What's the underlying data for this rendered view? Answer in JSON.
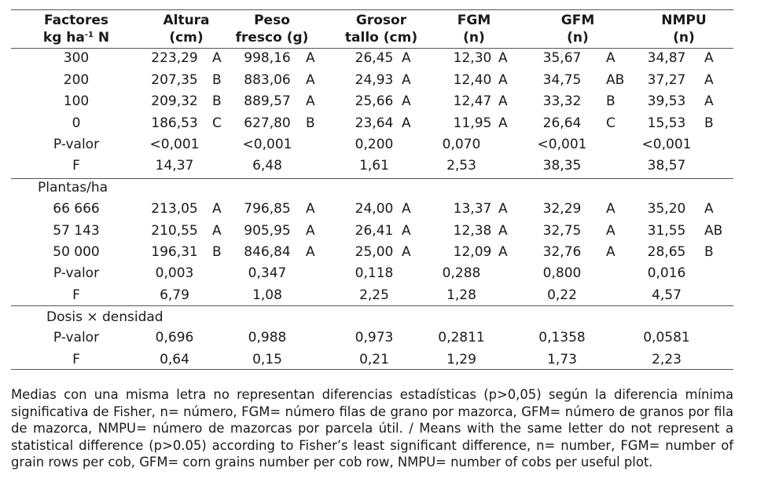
{
  "headers": [
    {
      "line1": "Factores",
      "line2a": "kg ha",
      "sup": "-1",
      "line2b": " N"
    },
    {
      "line1": "Altura",
      "line2": "(cm)"
    },
    {
      "line1": "Peso",
      "line2": "fresco (g)"
    },
    {
      "line1": "Grosor",
      "line2": "tallo (cm)"
    },
    {
      "line1": "FGM",
      "line2": "(n)"
    },
    {
      "line1": "GFM",
      "line2": "(n)"
    },
    {
      "line1": "NMPU",
      "line2": "(n)"
    }
  ],
  "sections": [
    {
      "title": "",
      "rows": [
        {
          "label": "300",
          "cells": [
            [
              "223,29",
              "A"
            ],
            [
              "998,16",
              "A"
            ],
            [
              "26,45",
              "A"
            ],
            [
              "12,30",
              "A"
            ],
            [
              "35,67",
              "A"
            ],
            [
              "34,87",
              "A"
            ]
          ]
        },
        {
          "label": "200",
          "cells": [
            [
              "207,35",
              "B"
            ],
            [
              "883,06",
              "A"
            ],
            [
              "24,93",
              "A"
            ],
            [
              "12,40",
              "A"
            ],
            [
              "34,75",
              "AB"
            ],
            [
              "37,27",
              "A"
            ]
          ]
        },
        {
          "label": "100",
          "cells": [
            [
              "209,32",
              "B"
            ],
            [
              "889,57",
              "A"
            ],
            [
              "25,66",
              "A"
            ],
            [
              "12,47",
              "A"
            ],
            [
              "33,32",
              "B"
            ],
            [
              "39,53",
              "A"
            ]
          ]
        },
        {
          "label": "0",
          "cells": [
            [
              "186,53",
              "C"
            ],
            [
              "627,80",
              "B"
            ],
            [
              "23,64",
              "A"
            ],
            [
              "11,95",
              "A"
            ],
            [
              "26,64",
              "C"
            ],
            [
              "15,53",
              "B"
            ]
          ]
        }
      ],
      "stats": [
        {
          "label": "P-valor",
          "values": [
            "<0,001",
            "<0,001",
            "0,200",
            "0,070",
            "<0,001",
            "<0,001"
          ]
        },
        {
          "label": "F",
          "values": [
            "14,37",
            "6,48",
            "1,61",
            "2,53",
            "38,35",
            "38,57"
          ]
        }
      ]
    },
    {
      "title": "Plantas/ha",
      "rows": [
        {
          "label": "66 666",
          "cells": [
            [
              "213,05",
              "A"
            ],
            [
              "796,85",
              "A"
            ],
            [
              "24,00",
              "A"
            ],
            [
              "13,37",
              "A"
            ],
            [
              "32,29",
              "A"
            ],
            [
              "35,20",
              "A"
            ]
          ]
        },
        {
          "label": "57 143",
          "cells": [
            [
              "210,55",
              "A"
            ],
            [
              "905,95",
              "A"
            ],
            [
              "26,41",
              "A"
            ],
            [
              "12,38",
              "A"
            ],
            [
              "32,75",
              "A"
            ],
            [
              "31,55",
              "AB"
            ]
          ]
        },
        {
          "label": "50 000",
          "cells": [
            [
              "196,31",
              "B"
            ],
            [
              "846,84",
              "A"
            ],
            [
              "25,00",
              "A"
            ],
            [
              "12,09",
              "A"
            ],
            [
              "32,76",
              "A"
            ],
            [
              "28,65",
              "B"
            ]
          ]
        }
      ],
      "stats": [
        {
          "label": "P-valor",
          "values": [
            "0,003",
            "0,347",
            "0,118",
            "0,288",
            "0,800",
            "0,016"
          ]
        },
        {
          "label": "F",
          "values": [
            "6,79",
            "1,08",
            "2,25",
            "1,28",
            "0,22",
            "4,57"
          ]
        }
      ]
    },
    {
      "title": "Dosis × densidad",
      "rows": [],
      "stats": [
        {
          "label": "P-valor",
          "values": [
            "0,696",
            "0,988",
            "0,973",
            "0,2811",
            "0,1358",
            "0,0581"
          ]
        },
        {
          "label": "F",
          "values": [
            "0,64",
            "0,15",
            "0,21",
            "1,29",
            "1,73",
            "2,23"
          ]
        }
      ]
    }
  ],
  "footnote": "Medias con una misma letra no representan diferencias estadísticas (p>0,05) según la diferencia mínima significativa de Fisher, n= número, FGM= número filas de grano por mazorca, GFM= número de granos por fila de mazorca, NMPU= número de mazorcas por parcela útil. / Means with the same letter do not represent a statistical difference (p>0.05) according to Fisher’s least significant difference, n= number, FGM= number of grain rows per cob, GFM= corn grains number per cob row, NMPU= number of cobs per useful plot."
}
